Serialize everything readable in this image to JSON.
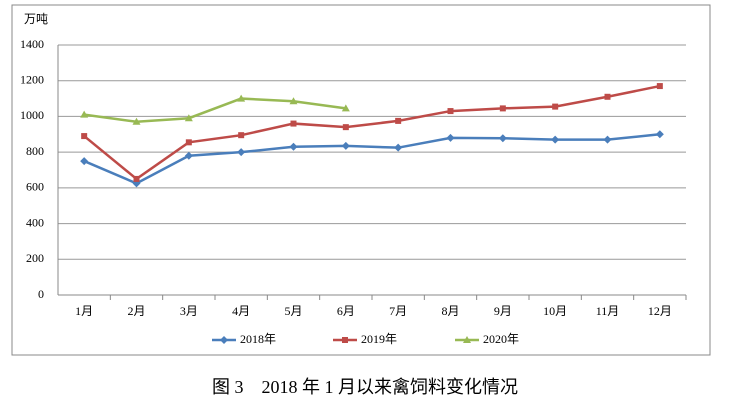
{
  "chart_data": {
    "type": "line",
    "unit_label": "万吨",
    "categories": [
      "1月",
      "2月",
      "3月",
      "4月",
      "5月",
      "6月",
      "7月",
      "8月",
      "9月",
      "10月",
      "11月",
      "12月"
    ],
    "series": [
      {
        "name": "2018年",
        "color": "#4a7ebb",
        "marker": "diamond",
        "values": [
          750,
          625,
          780,
          800,
          830,
          835,
          825,
          880,
          878,
          870,
          870,
          900
        ]
      },
      {
        "name": "2019年",
        "color": "#be4b48",
        "marker": "square",
        "values": [
          890,
          650,
          855,
          895,
          960,
          940,
          975,
          1030,
          1045,
          1055,
          1110,
          1170
        ]
      },
      {
        "name": "2020年",
        "color": "#98b954",
        "marker": "triangle",
        "values": [
          1010,
          970,
          990,
          1100,
          1085,
          1045,
          null,
          null,
          null,
          null,
          null,
          null
        ]
      }
    ],
    "ylim": [
      0,
      1400
    ],
    "yticks": [
      0,
      200,
      400,
      600,
      800,
      1000,
      1200,
      1400
    ],
    "grid": true,
    "legend": "bottom"
  },
  "caption": "图 3　2018 年 1 月以来禽饲料变化情况"
}
